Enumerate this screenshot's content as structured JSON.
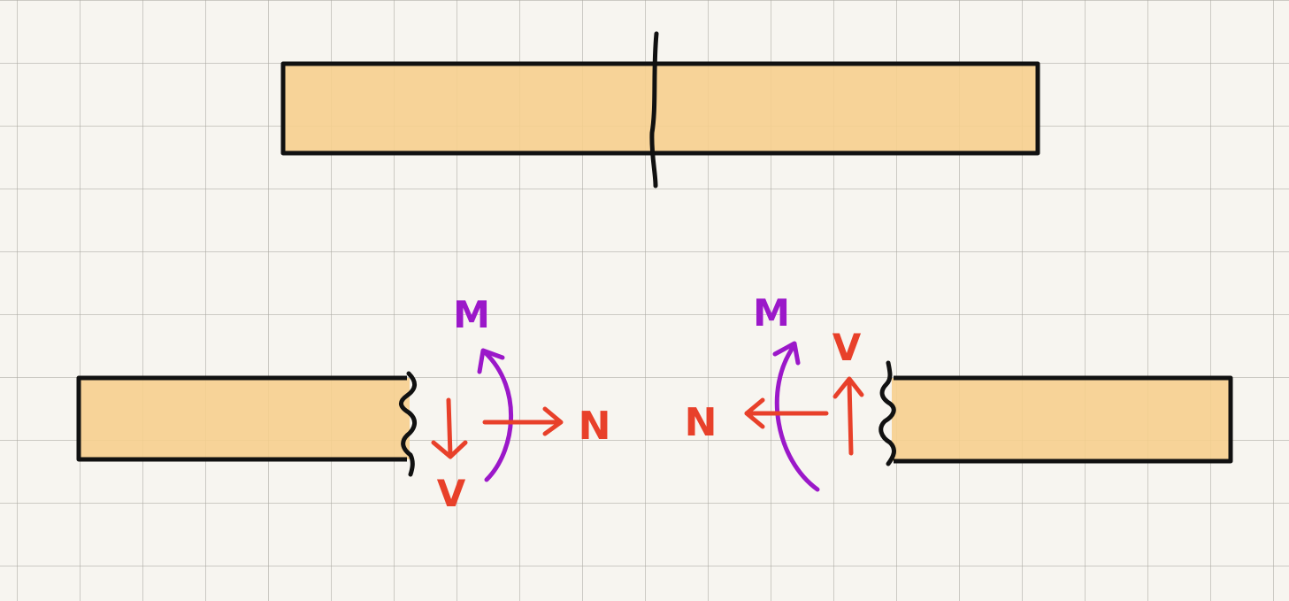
{
  "colors": {
    "beam_fill": "#f6cf8e",
    "outline": "#111111",
    "force": "#e8402a",
    "moment": "#9b18c9"
  },
  "left_section": {
    "moment_label": "M",
    "shear_label": "V",
    "normal_label": "N"
  },
  "right_section": {
    "moment_label": "M",
    "shear_label": "V",
    "normal_label": "N"
  }
}
